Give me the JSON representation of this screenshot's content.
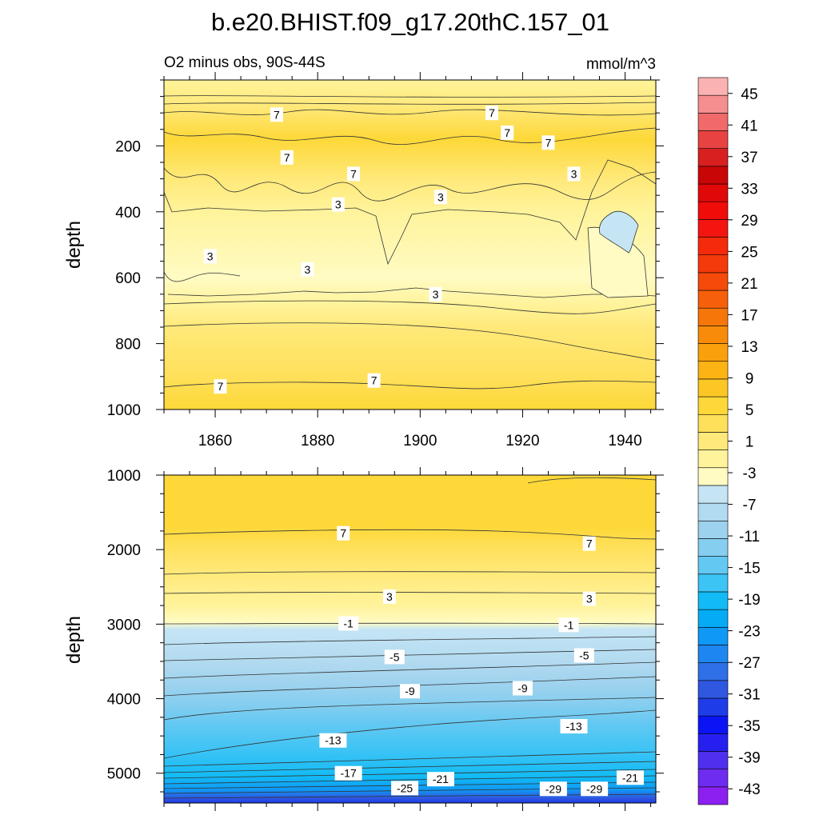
{
  "chart_data": {
    "type": "heatmap",
    "title": "b.e20.BHIST.f09_g17.20thC.157_01",
    "subtitle_left": "O2 minus obs, 90S-44S",
    "subtitle_right": "mmol/m^3",
    "x_range": [
      1850,
      1946
    ],
    "x_ticks": [
      "1860",
      "1880",
      "1900",
      "1920",
      "1940"
    ],
    "panels": [
      {
        "name": "upper",
        "ylabel": "depth",
        "y_range": [
          0,
          1000
        ],
        "y_ticks": [
          "200",
          "400",
          "600",
          "800",
          "1000"
        ],
        "contour_labels": [
          {
            "text": "7",
            "x": 1872,
            "y": 105
          },
          {
            "text": "7",
            "x": 1914,
            "y": 100
          },
          {
            "text": "7",
            "x": 1917,
            "y": 160
          },
          {
            "text": "7",
            "x": 1925,
            "y": 190
          },
          {
            "text": "7",
            "x": 1874,
            "y": 235
          },
          {
            "text": "7",
            "x": 1887,
            "y": 285
          },
          {
            "text": "3",
            "x": 1930,
            "y": 285
          },
          {
            "text": "3",
            "x": 1904,
            "y": 355
          },
          {
            "text": "3",
            "x": 1884,
            "y": 378
          },
          {
            "text": "3",
            "x": 1859,
            "y": 535
          },
          {
            "text": "3",
            "x": 1878,
            "y": 575
          },
          {
            "text": "3",
            "x": 1903,
            "y": 650
          },
          {
            "text": "7",
            "x": 1861,
            "y": 930
          },
          {
            "text": "7",
            "x": 1891,
            "y": 912
          }
        ]
      },
      {
        "name": "lower",
        "ylabel": "depth",
        "y_range": [
          1000,
          5400
        ],
        "y_ticks": [
          "1000",
          "2000",
          "3000",
          "4000",
          "5000"
        ],
        "contour_labels": [
          {
            "text": "7",
            "x": 1885,
            "y": 1780
          },
          {
            "text": "7",
            "x": 1933,
            "y": 1920
          },
          {
            "text": "3",
            "x": 1894,
            "y": 2630
          },
          {
            "text": "3",
            "x": 1933,
            "y": 2660
          },
          {
            "text": "-1",
            "x": 1886,
            "y": 2990
          },
          {
            "text": "-1",
            "x": 1929,
            "y": 3010
          },
          {
            "text": "-5",
            "x": 1895,
            "y": 3440
          },
          {
            "text": "-5",
            "x": 1932,
            "y": 3420
          },
          {
            "text": "-9",
            "x": 1898,
            "y": 3900
          },
          {
            "text": "-9",
            "x": 1920,
            "y": 3860
          },
          {
            "text": "-13",
            "x": 1883,
            "y": 4560
          },
          {
            "text": "-13",
            "x": 1930,
            "y": 4370
          },
          {
            "text": "-17",
            "x": 1886,
            "y": 5000
          },
          {
            "text": "-21",
            "x": 1904,
            "y": 5080
          },
          {
            "text": "-21",
            "x": 1941,
            "y": 5060
          },
          {
            "text": "-25",
            "x": 1897,
            "y": 5200
          },
          {
            "text": "-29",
            "x": 1926,
            "y": 5210
          },
          {
            "text": "-29",
            "x": 1934,
            "y": 5210
          }
        ]
      }
    ],
    "colorbar": {
      "min": -45,
      "max": 47,
      "step": 2,
      "tick_labels": [
        "45",
        "41",
        "37",
        "33",
        "29",
        "25",
        "21",
        "17",
        "13",
        "9",
        "5",
        "1",
        "-3",
        "-7",
        "-11",
        "-15",
        "-19",
        "-23",
        "-27",
        "-31",
        "-35",
        "-39",
        "-43"
      ],
      "colors": [
        "#8b20f0",
        "#6e2cf0",
        "#5030ee",
        "#2520f0",
        "#0a14f5",
        "#1e3ce8",
        "#2f57e0",
        "#2f6fe8",
        "#1e86f0",
        "#0f98f5",
        "#05abf5",
        "#12bbf5",
        "#3cc4f5",
        "#63c8f2",
        "#85cef0",
        "#9dd2ee",
        "#b2daf0",
        "#c5e5f5",
        "#fffbc3",
        "#fff39b",
        "#ffe97a",
        "#ffe05a",
        "#fdd838",
        "#fcc624",
        "#fbb414",
        "#f9a00c",
        "#f88c0a",
        "#f7760a",
        "#f6600a",
        "#f54a0a",
        "#f43a0a",
        "#f52a0a",
        "#f51510",
        "#f00c08",
        "#e00808",
        "#c80606",
        "#d82020",
        "#e84242",
        "#f06a6a",
        "#f58f8f",
        "#fab2b2"
      ]
    }
  }
}
